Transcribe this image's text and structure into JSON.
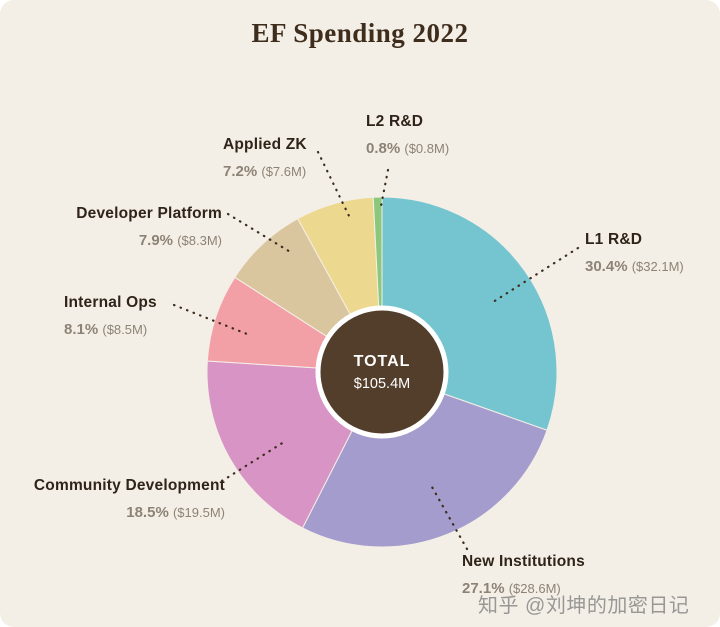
{
  "title": "EF Spending 2022",
  "center": {
    "label": "TOTAL",
    "value": "$105.4M"
  },
  "watermark": "知乎 @刘坤的加密日记",
  "chart_data": {
    "type": "pie",
    "title": "EF Spending 2022",
    "subtype": "donut",
    "start_angle_deg": 0,
    "direction": "clockwise",
    "legend": "none",
    "total_label": "TOTAL",
    "total_value": "$105.4M",
    "total_millions": 105.4,
    "donut_hole_color": "#533e2c",
    "background_color": "#f4efe6",
    "segments": [
      {
        "id": "l1-rd",
        "label": "L1 R&D",
        "percent": 30.4,
        "percent_text": "30.4%",
        "value_text": "($32.1M)",
        "value_millions": 32.1,
        "color": "#75c5d1"
      },
      {
        "id": "new-institutions",
        "label": "New Institutions",
        "percent": 27.1,
        "percent_text": "27.1%",
        "value_text": "($28.6M)",
        "value_millions": 28.6,
        "color": "#a49ccd"
      },
      {
        "id": "community-development",
        "label": "Community Development",
        "percent": 18.5,
        "percent_text": "18.5%",
        "value_text": "($19.5M)",
        "value_millions": 19.5,
        "color": "#d794c5"
      },
      {
        "id": "internal-ops",
        "label": "Internal Ops",
        "percent": 8.1,
        "percent_text": "8.1%",
        "value_text": "($8.5M)",
        "value_millions": 8.5,
        "color": "#f2a0a6"
      },
      {
        "id": "developer-platform",
        "label": "Developer Platform",
        "percent": 7.9,
        "percent_text": "7.9%",
        "value_text": "($8.3M)",
        "value_millions": 8.3,
        "color": "#d9c69e"
      },
      {
        "id": "applied-zk",
        "label": "Applied ZK",
        "percent": 7.2,
        "percent_text": "7.2%",
        "value_text": "($7.6M)",
        "value_millions": 7.6,
        "color": "#ecd88f"
      },
      {
        "id": "l2-rd",
        "label": "L2 R&D",
        "percent": 0.8,
        "percent_text": "0.8%",
        "value_text": "($0.8M)",
        "value_millions": 0.8,
        "color": "#8bc77d"
      }
    ]
  }
}
